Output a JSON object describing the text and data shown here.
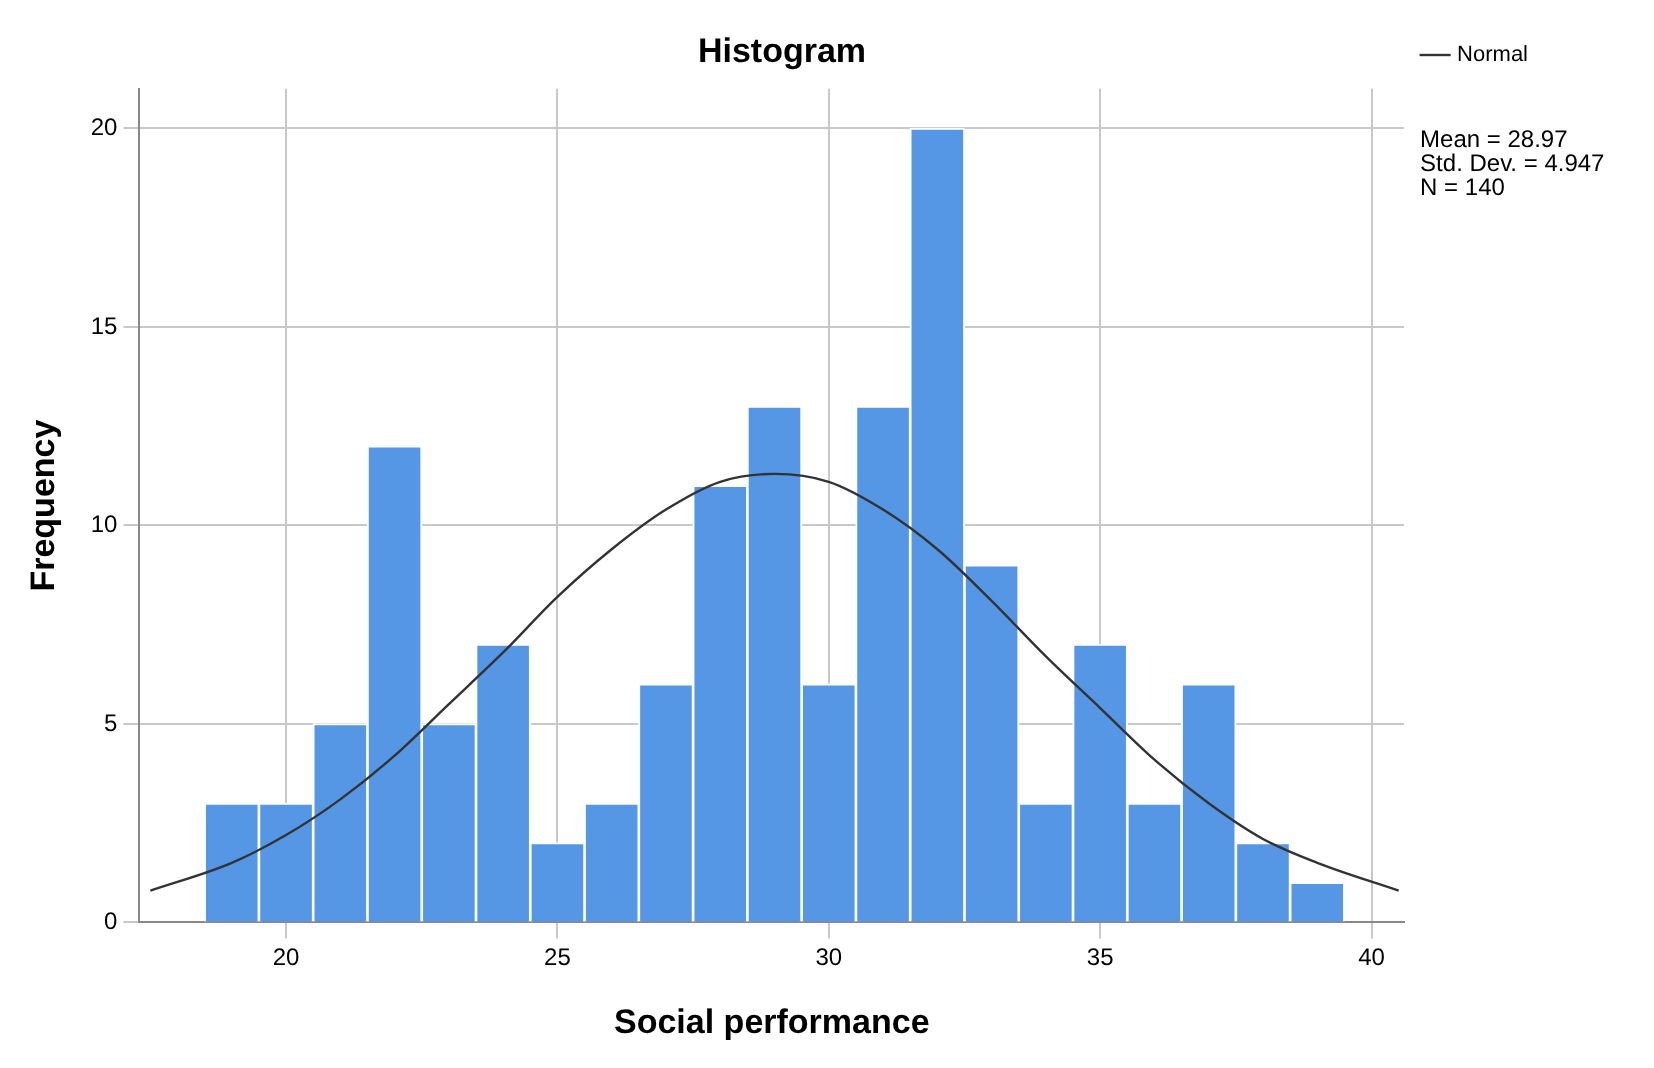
{
  "chart_data": {
    "type": "histogram",
    "title": "Histogram",
    "xlabel": "Social performance",
    "ylabel": "Frequency",
    "bins": [
      18.5,
      19.5,
      20.5,
      21.5,
      22.5,
      23.5,
      24.5,
      25.5,
      26.5,
      27.5,
      28.5,
      29.5,
      30.5,
      31.5,
      32.5,
      33.5,
      34.5,
      35.5,
      36.5,
      37.5,
      38.5,
      39.5
    ],
    "values": [
      3,
      3,
      5,
      12,
      5,
      7,
      2,
      3,
      6,
      11,
      13,
      6,
      13,
      20,
      9,
      3,
      7,
      3,
      6,
      2,
      1
    ],
    "color": "#5596e5",
    "series": [
      {
        "type": "line",
        "name": "Normal",
        "color": "#333333",
        "x": [
          17.5,
          19,
          20,
          21,
          22,
          23,
          24,
          25,
          26,
          27,
          28,
          29,
          30,
          31,
          32,
          33,
          34,
          35,
          36,
          37,
          38,
          39,
          40.5
        ],
        "values": [
          0.8,
          1.5,
          2.2,
          3.1,
          4.2,
          5.5,
          6.8,
          8.2,
          9.4,
          10.4,
          11.1,
          11.3,
          11.1,
          10.4,
          9.4,
          8.1,
          6.7,
          5.4,
          4.1,
          3.0,
          2.1,
          1.5,
          0.8
        ]
      }
    ],
    "xlim": [
      17.3,
      40.6
    ],
    "xticks": [
      20,
      25,
      30,
      35,
      40
    ],
    "ylim": [
      0,
      21
    ],
    "yticks": [
      0,
      5,
      10,
      15,
      20
    ],
    "grid": true,
    "legend": "top right",
    "line_style": "solid",
    "marker": "none",
    "annotations": [
      "Mean = 28.97",
      "Std. Dev. = 4.947",
      "N = 140"
    ]
  }
}
